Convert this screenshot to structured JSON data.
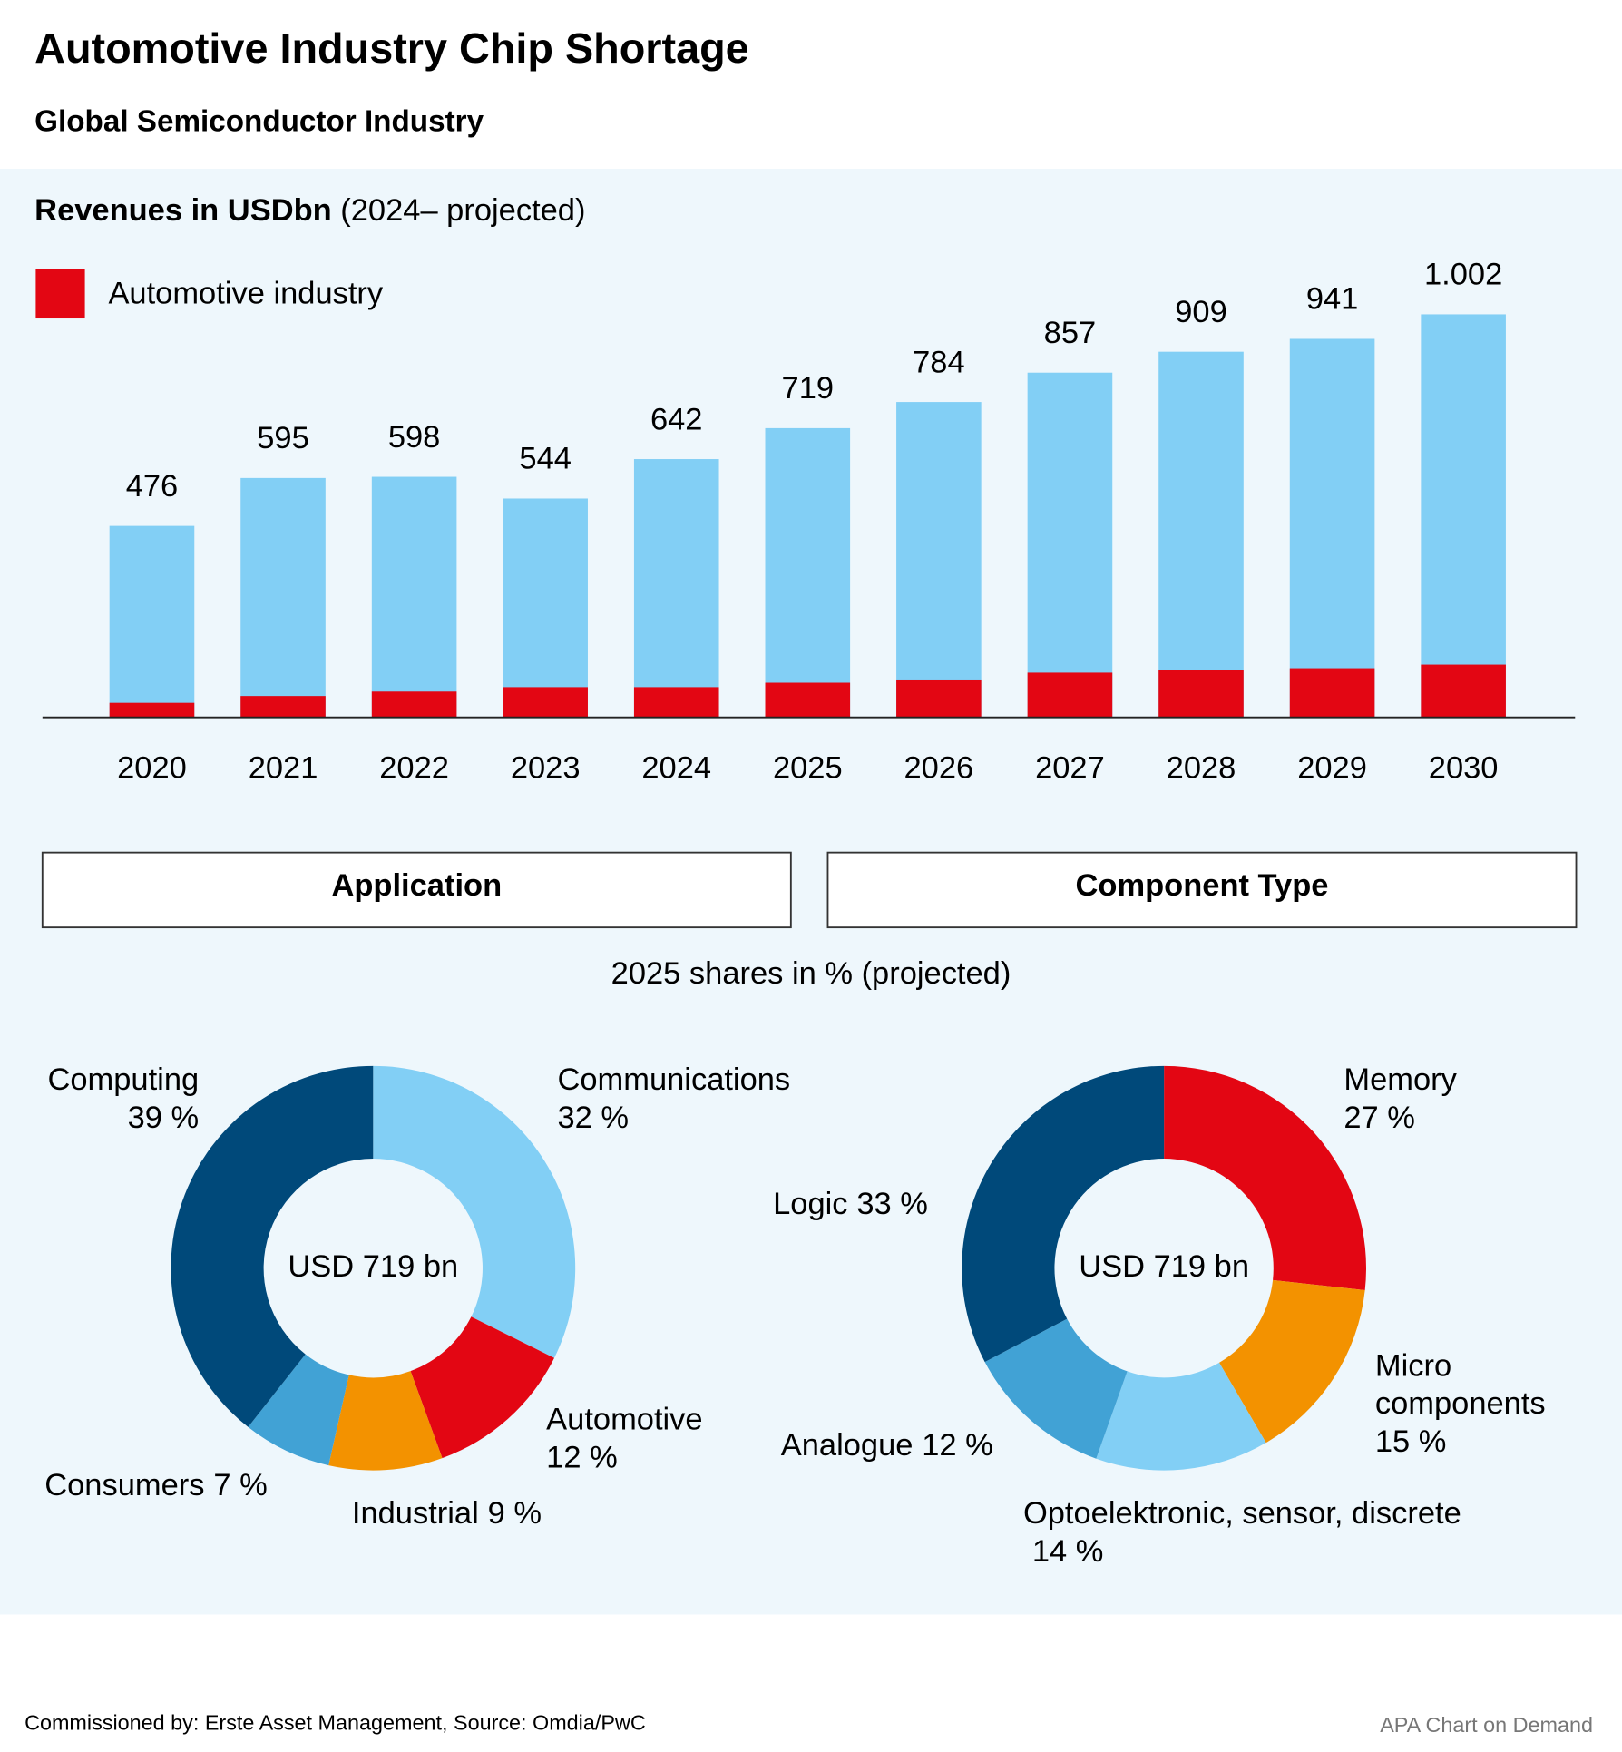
{
  "header": {
    "title": "Automotive Industry Chip Shortage",
    "subtitle": "Global Semiconductor Industry"
  },
  "shares_note": "2025 shares in % (projected)",
  "footer": {
    "source": "Commissioned by: Erste Asset Management, Source: Omdia/PwC",
    "credit": "APA Chart on Demand"
  },
  "chart_data": [
    {
      "type": "bar",
      "title": "Revenues in USDbn",
      "subtitle": "(2024– projected)",
      "categories": [
        "2020",
        "2021",
        "2022",
        "2023",
        "2024",
        "2025",
        "2026",
        "2027",
        "2028",
        "2029",
        "2030"
      ],
      "values": [
        476,
        595,
        598,
        544,
        642,
        719,
        784,
        857,
        909,
        941,
        1002
      ],
      "value_labels": [
        "476",
        "595",
        "598",
        "544",
        "642",
        "719",
        "784",
        "857",
        "909",
        "941",
        "1.002"
      ],
      "color": "#82cff5",
      "highlight": {
        "name": "Automotive industry",
        "color": "#e30613",
        "values": [
          36,
          53,
          64,
          75,
          75,
          86,
          94,
          111,
          117,
          122,
          131
        ]
      },
      "ylim": [
        0,
        1100
      ]
    },
    {
      "type": "donut",
      "title": "Application",
      "center_label": "USD 719 bn",
      "categories": [
        "Communications",
        "Automotive",
        "Industrial",
        "Consumers",
        "Computing"
      ],
      "values": [
        32,
        12,
        9,
        7,
        39
      ],
      "value_labels": [
        "32 %",
        "12 %",
        "9 %",
        "7 %",
        "39 %"
      ],
      "colors": [
        "#82cff5",
        "#e30613",
        "#f39200",
        "#41a2d5",
        "#00497a"
      ]
    },
    {
      "type": "donut",
      "title": "Component Type",
      "center_label": "USD 719 bn",
      "categories": [
        "Memory",
        "Micro components",
        "Optoelektronic, sensor, discrete",
        "Analogue",
        "Logic"
      ],
      "values": [
        27,
        15,
        14,
        12,
        33
      ],
      "value_labels": [
        "27 %",
        "15 %",
        "14 %",
        "12 %",
        "33 %"
      ],
      "colors": [
        "#e30613",
        "#f39200",
        "#82cff5",
        "#41a2d5",
        "#00497a"
      ]
    }
  ]
}
